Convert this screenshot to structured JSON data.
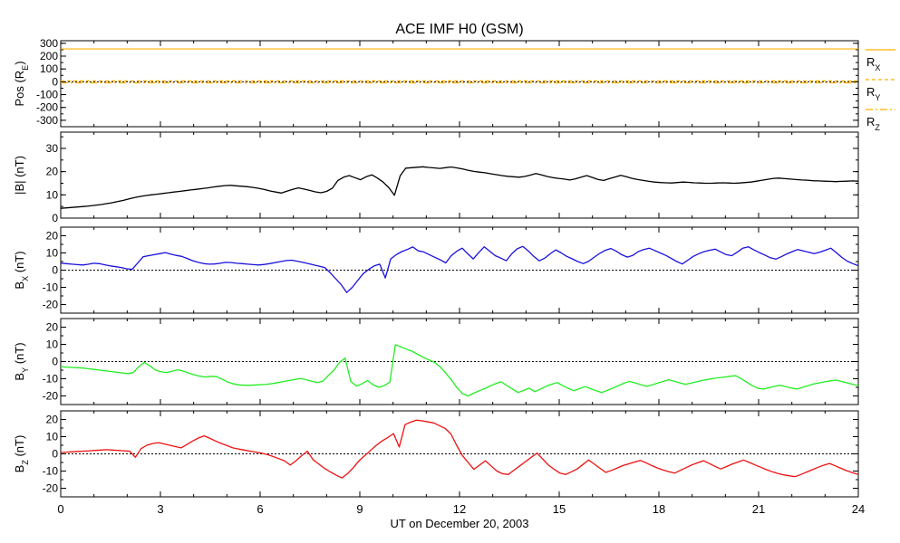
{
  "chart_data": {
    "type": "line",
    "title": "ACE IMF H0 (GSM)",
    "xlabel": "UT on December 20, 2003",
    "xlim": [
      0,
      24
    ],
    "xticks": [
      "0",
      "3",
      "6",
      "9",
      "12",
      "15",
      "18",
      "21",
      "24"
    ],
    "panels": [
      {
        "id": "pos",
        "ylabel": "Pos (RE)",
        "ylabel_main": "Pos (R",
        "ylabel_sub": "E",
        "ylabel_tail": ")",
        "ylim": [
          -350,
          320
        ],
        "yticks": [
          "300",
          "200",
          "100",
          "0",
          "-100",
          "-200",
          "-300"
        ],
        "ytick_values": [
          300,
          200,
          100,
          0,
          -100,
          -200,
          -300
        ],
        "zero_line": true,
        "series": [
          {
            "name": "RX",
            "label_main": "R",
            "label_sub": "X",
            "color": "#ffb000",
            "dash": "",
            "values": [
              256,
              256
            ]
          },
          {
            "name": "RY",
            "label_main": "R",
            "label_sub": "Y",
            "color": "#ffb000",
            "dash": "4,3",
            "values": [
              7,
              7
            ]
          },
          {
            "name": "RZ",
            "label_main": "R",
            "label_sub": "Z",
            "color": "#ffb000",
            "dash": "8,3,2,3",
            "values": [
              -8,
              -8
            ]
          }
        ]
      },
      {
        "id": "bt",
        "ylabel": "|B| (nT)",
        "ylim": [
          0,
          37
        ],
        "yticks": [
          "30",
          "20",
          "10",
          "0"
        ],
        "ytick_values": [
          30,
          20,
          10,
          0
        ],
        "zero_line": false,
        "color": "#000000",
        "values": [
          4.2,
          4.4,
          4.6,
          4.8,
          5.0,
          5.2,
          5.5,
          5.8,
          6.2,
          6.6,
          7.1,
          7.6,
          8.2,
          8.8,
          9.3,
          9.7,
          10.0,
          10.3,
          10.6,
          10.9,
          11.2,
          11.5,
          11.8,
          12.1,
          12.4,
          12.7,
          13.0,
          13.4,
          13.7,
          14.0,
          14.1,
          13.9,
          13.7,
          13.5,
          13.2,
          12.8,
          12.3,
          11.7,
          11.2,
          10.8,
          11.6,
          12.4,
          13.0,
          12.5,
          11.9,
          11.3,
          10.9,
          11.5,
          12.8,
          16.2,
          17.6,
          18.3,
          17.4,
          16.5,
          17.8,
          18.6,
          17.2,
          15.5,
          13.1,
          9.8,
          18.2,
          21.5,
          21.7,
          21.9,
          22.1,
          21.8,
          21.6,
          21.4,
          21.7,
          22.0,
          21.6,
          21.2,
          20.6,
          20.1,
          19.8,
          19.5,
          19.1,
          18.7,
          18.3,
          18.0,
          17.8,
          17.6,
          17.9,
          18.5,
          19.2,
          18.6,
          17.9,
          17.4,
          17.1,
          16.8,
          16.4,
          16.9,
          17.6,
          18.3,
          17.5,
          16.6,
          16.2,
          17.0,
          17.7,
          18.4,
          17.8,
          17.1,
          16.6,
          16.2,
          15.8,
          15.5,
          15.3,
          15.2,
          15.1,
          15.3,
          15.5,
          15.4,
          15.2,
          15.1,
          15.0,
          15.0,
          15.1,
          15.2,
          15.1,
          15.0,
          15.1,
          15.3,
          15.5,
          15.9,
          16.3,
          16.7,
          17.1,
          17.2,
          17.0,
          16.8,
          16.6,
          16.4,
          16.3,
          16.1,
          16.0,
          15.9,
          15.8,
          15.7,
          15.8,
          15.9,
          16.0,
          15.9
        ]
      },
      {
        "id": "bx",
        "ylabel": "BX (nT)",
        "ylabel_main": "B",
        "ylabel_sub": "X",
        "ylabel_tail": " (nT)",
        "ylim": [
          -25,
          25
        ],
        "yticks": [
          "20",
          "10",
          "0",
          "-10",
          "-20"
        ],
        "ytick_values": [
          20,
          10,
          0,
          -10,
          -20
        ],
        "zero_line": true,
        "color": "#1a10dc",
        "values": [
          4.0,
          3.8,
          3.5,
          3.2,
          3.0,
          3.4,
          4.0,
          3.8,
          3.1,
          2.5,
          2.0,
          1.5,
          0.8,
          0.5,
          4.2,
          7.8,
          8.4,
          9.0,
          9.6,
          10.2,
          9.3,
          8.6,
          8.0,
          6.8,
          5.5,
          4.5,
          3.8,
          3.5,
          3.6,
          4.0,
          4.5,
          4.4,
          4.0,
          3.8,
          3.5,
          3.2,
          3.0,
          3.3,
          3.8,
          4.4,
          5.0,
          5.6,
          5.8,
          5.2,
          4.5,
          3.8,
          3.0,
          2.3,
          1.5,
          -1.5,
          -5.0,
          -8.5,
          -13.0,
          -10.0,
          -6.0,
          -2.0,
          0.5,
          2.5,
          3.5,
          -4.5,
          6.5,
          9.0,
          10.8,
          12.0,
          13.5,
          11.2,
          10.6,
          9.0,
          7.5,
          6.0,
          4.2,
          8.4,
          11.0,
          12.8,
          9.5,
          6.5,
          10.2,
          13.6,
          11.0,
          8.4,
          7.0,
          5.5,
          9.5,
          12.4,
          13.8,
          11.2,
          8.0,
          5.4,
          7.0,
          9.5,
          11.8,
          10.0,
          8.0,
          6.6,
          5.0,
          3.8,
          5.2,
          7.6,
          9.8,
          11.5,
          12.6,
          11.0,
          9.0,
          7.6,
          8.6,
          10.8,
          12.0,
          12.8,
          11.4,
          10.0,
          8.6,
          6.8,
          5.0,
          3.6,
          5.8,
          8.0,
          9.6,
          10.8,
          11.6,
          12.2,
          10.6,
          9.0,
          8.4,
          10.5,
          12.8,
          13.6,
          11.8,
          10.2,
          8.8,
          7.2,
          6.4,
          7.8,
          9.4,
          10.8,
          12.0,
          11.2,
          10.4,
          9.6,
          10.5,
          11.6,
          12.8,
          10.2,
          7.4,
          5.2,
          3.8,
          2.6
        ]
      },
      {
        "id": "by",
        "ylabel": "BY (nT)",
        "ylabel_main": "B",
        "ylabel_sub": "Y",
        "ylabel_tail": " (nT)",
        "ylim": [
          -25,
          25
        ],
        "yticks": [
          "20",
          "10",
          "0",
          "-10",
          "-20"
        ],
        "ytick_values": [
          20,
          10,
          0,
          -10,
          -20
        ],
        "zero_line": true,
        "color": "#22ee22",
        "values": [
          -3.0,
          -3.2,
          -3.4,
          -3.6,
          -3.8,
          -4.2,
          -4.6,
          -5.0,
          -5.4,
          -5.8,
          -6.2,
          -6.6,
          -7.0,
          -6.4,
          -3.0,
          -0.5,
          -2.5,
          -5.0,
          -6.0,
          -6.4,
          -5.6,
          -4.8,
          -5.6,
          -6.8,
          -7.8,
          -8.6,
          -9.0,
          -8.6,
          -8.8,
          -10.4,
          -12.0,
          -13.0,
          -13.6,
          -13.8,
          -13.8,
          -13.6,
          -13.4,
          -13.2,
          -12.8,
          -12.2,
          -11.6,
          -11.0,
          -10.4,
          -9.8,
          -10.6,
          -11.4,
          -12.2,
          -11.4,
          -8.0,
          -5.0,
          -0.5,
          2.0,
          -11.5,
          -14.2,
          -13.0,
          -11.0,
          -13.5,
          -15.0,
          -14.0,
          -12.0,
          9.8,
          8.5,
          7.2,
          6.0,
          4.2,
          2.5,
          1.0,
          -0.5,
          -3.0,
          -6.5,
          -10.5,
          -15.0,
          -18.6,
          -20.0,
          -18.5,
          -17.0,
          -15.8,
          -14.2,
          -12.8,
          -11.8,
          -14.0,
          -16.0,
          -18.0,
          -16.8,
          -15.5,
          -17.5,
          -16.0,
          -14.4,
          -13.2,
          -12.2,
          -14.0,
          -15.6,
          -17.0,
          -15.8,
          -14.6,
          -15.8,
          -17.0,
          -18.0,
          -16.8,
          -15.4,
          -14.0,
          -12.6,
          -11.6,
          -12.4,
          -13.4,
          -14.4,
          -13.6,
          -12.6,
          -11.6,
          -10.6,
          -11.4,
          -12.4,
          -13.2,
          -12.6,
          -11.8,
          -11.0,
          -10.4,
          -9.8,
          -9.4,
          -9.0,
          -8.6,
          -8.2,
          -10.0,
          -12.0,
          -14.0,
          -15.6,
          -16.0,
          -15.2,
          -14.4,
          -13.8,
          -14.6,
          -15.4,
          -16.0,
          -15.0,
          -14.0,
          -13.0,
          -12.4,
          -11.8,
          -11.2,
          -10.8,
          -11.6,
          -12.4,
          -13.2,
          -14.0
        ]
      },
      {
        "id": "bz",
        "ylabel": "BZ (nT)",
        "ylabel_main": "B",
        "ylabel_sub": "Z",
        "ylabel_tail": " (nT)",
        "ylim": [
          -25,
          25
        ],
        "yticks": [
          "20",
          "10",
          "0",
          "-10",
          "-20"
        ],
        "ytick_values": [
          20,
          10,
          0,
          -10,
          -20
        ],
        "zero_line": true,
        "color": "#ee1111",
        "values": [
          0.8,
          1.0,
          1.2,
          1.4,
          1.6,
          1.8,
          2.0,
          2.2,
          2.4,
          2.2,
          2.0,
          1.8,
          1.6,
          -2.0,
          3.0,
          5.0,
          6.0,
          6.5,
          5.8,
          5.0,
          4.2,
          3.5,
          5.5,
          7.5,
          9.2,
          10.5,
          9.0,
          7.5,
          6.0,
          4.8,
          3.5,
          2.8,
          2.2,
          1.6,
          1.0,
          0.4,
          -0.4,
          -1.5,
          -2.8,
          -4.0,
          -6.5,
          -4.0,
          -1.0,
          1.5,
          -3.5,
          -6.0,
          -8.5,
          -10.5,
          -12.4,
          -14.0,
          -11.5,
          -8.0,
          -4.0,
          -1.0,
          2.0,
          5.0,
          7.5,
          9.5,
          11.8,
          4.0,
          17.0,
          18.5,
          19.6,
          19.2,
          18.6,
          18.0,
          16.4,
          14.8,
          11.6,
          5.0,
          -1.0,
          -5.0,
          -9.0,
          -6.5,
          -4.0,
          -7.0,
          -10.0,
          -11.6,
          -12.0,
          -9.5,
          -7.0,
          -4.5,
          -2.0,
          0.5,
          -3.0,
          -6.5,
          -9.0,
          -11.2,
          -12.0,
          -10.4,
          -8.8,
          -6.2,
          -3.6,
          -6.0,
          -8.4,
          -10.8,
          -9.6,
          -8.2,
          -6.8,
          -5.8,
          -4.8,
          -3.8,
          -5.2,
          -6.8,
          -8.2,
          -9.4,
          -10.4,
          -11.2,
          -9.6,
          -8.0,
          -6.4,
          -5.2,
          -4.0,
          -5.6,
          -7.2,
          -8.8,
          -7.4,
          -6.0,
          -4.8,
          -3.6,
          -5.0,
          -6.4,
          -7.8,
          -9.2,
          -10.4,
          -11.4,
          -12.2,
          -12.8,
          -13.2,
          -12.0,
          -10.6,
          -9.2,
          -7.8,
          -6.6,
          -5.6,
          -7.0,
          -8.4,
          -9.8,
          -11.0,
          -12.0
        ]
      }
    ]
  }
}
